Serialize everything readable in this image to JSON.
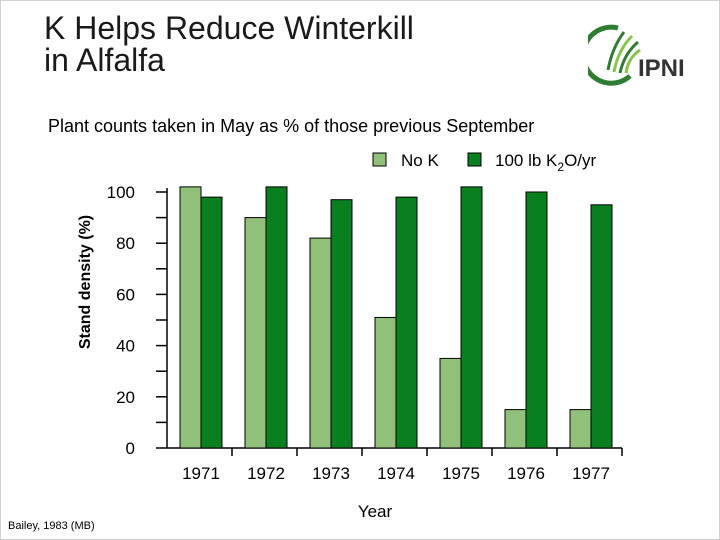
{
  "slide": {
    "title_line1": "K Helps Reduce Winterkill",
    "title_line2": "in Alfalfa",
    "subtitle": "Plant counts taken in May as % of those previous September",
    "citation": "Bailey, 1983 (MB)",
    "logo_text": "IPNI"
  },
  "colors": {
    "no_k": "#90c07a",
    "with_k": "#0a7f1f",
    "logo_green": "#2e7d32"
  },
  "chart_data": {
    "type": "bar",
    "categories": [
      "1971",
      "1972",
      "1973",
      "1974",
      "1975",
      "1976",
      "1977"
    ],
    "series": [
      {
        "name": "No K",
        "values": [
          102,
          90,
          82,
          51,
          35,
          15,
          15
        ]
      },
      {
        "name": "100 lb K2O/yr",
        "values": [
          98,
          102,
          97,
          98,
          102,
          100,
          95
        ]
      }
    ],
    "legend": {
      "no_k": "No K",
      "with_k_prefix": "100 lb K",
      "with_k_sub": "2",
      "with_k_suffix": "O/yr"
    },
    "xlabel": "Year",
    "ylabel": "Stand density (%)",
    "ylim": [
      0,
      100
    ],
    "yticks": [
      "0",
      "20",
      "40",
      "60",
      "80",
      "100"
    ],
    "grid": false,
    "legend_position": "top-right"
  }
}
